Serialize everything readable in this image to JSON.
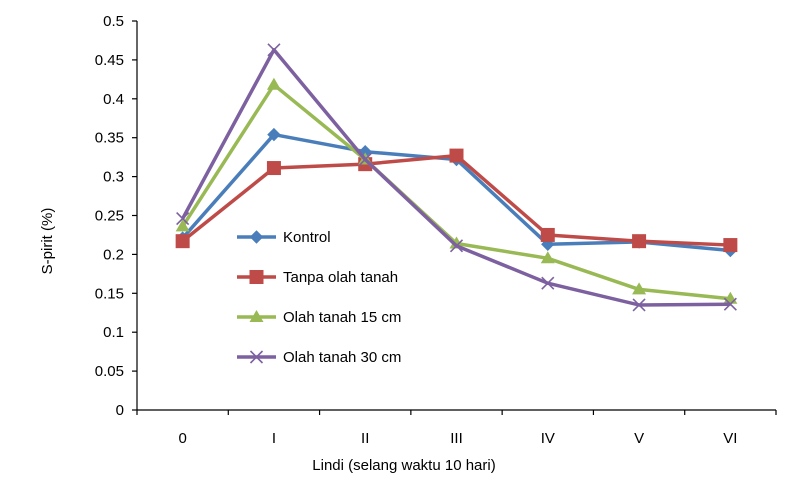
{
  "chart_data": {
    "type": "line",
    "xlabel": "Lindi (selang waktu 10 hari)",
    "ylabel": "S-pirit (%)",
    "categories": [
      "0",
      "I",
      "II",
      "III",
      "IV",
      "V",
      "VI"
    ],
    "ylim": [
      0,
      0.5
    ],
    "yticks": [
      "0",
      "0.05",
      "0.1",
      "0.15",
      "0.2",
      "0.25",
      "0.3",
      "0.35",
      "0.4",
      "0.45",
      "0.5"
    ],
    "grid": false,
    "legend_position": "inside-left",
    "series": [
      {
        "name": "Kontrol",
        "color": "#4a7ebb",
        "marker": "diamond",
        "values": [
          0.221,
          0.354,
          0.332,
          0.322,
          0.213,
          0.216,
          0.205
        ]
      },
      {
        "name": "Tanpa olah tanah",
        "color": "#be4b48",
        "marker": "square",
        "values": [
          0.217,
          0.311,
          0.316,
          0.327,
          0.225,
          0.217,
          0.212
        ]
      },
      {
        "name": "Olah tanah 15 cm",
        "color": "#98b954",
        "marker": "triangle",
        "values": [
          0.236,
          0.418,
          0.322,
          0.214,
          0.195,
          0.155,
          0.143
        ]
      },
      {
        "name": "Olah tanah 30 cm",
        "color": "#7d60a0",
        "marker": "x",
        "values": [
          0.246,
          0.463,
          0.322,
          0.211,
          0.163,
          0.135,
          0.136
        ]
      }
    ]
  }
}
